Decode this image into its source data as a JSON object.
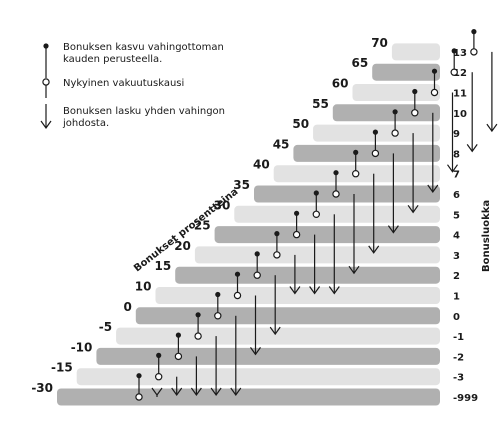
{
  "legend": {
    "growth_line1": "Bonuksen kasvu vahingottoman",
    "growth_line2": "kauden perusteella.",
    "current": "Nykyinen vakuutuskausi",
    "decrease_line1": "Bonuksen lasku yhden vahingon",
    "decrease_line2": "johdosta."
  },
  "axis_titles": {
    "percent": "Bonukset prosentteina",
    "class": "Bonusluokka"
  },
  "steps": [
    {
      "class": "-999",
      "percent": "-30"
    },
    {
      "class": "-3",
      "percent": "-15"
    },
    {
      "class": "-2",
      "percent": "-10"
    },
    {
      "class": "-1",
      "percent": "-5"
    },
    {
      "class": "0",
      "percent": "0"
    },
    {
      "class": "1",
      "percent": "10"
    },
    {
      "class": "2",
      "percent": "15"
    },
    {
      "class": "3",
      "percent": "20"
    },
    {
      "class": "4",
      "percent": "25"
    },
    {
      "class": "5",
      "percent": "30"
    },
    {
      "class": "6",
      "percent": "35"
    },
    {
      "class": "7",
      "percent": "40"
    },
    {
      "class": "8",
      "percent": "45"
    },
    {
      "class": "9",
      "percent": "50"
    },
    {
      "class": "10",
      "percent": "55"
    },
    {
      "class": "11",
      "percent": "60"
    },
    {
      "class": "12",
      "percent": "65"
    },
    {
      "class": "13",
      "percent": "70"
    }
  ],
  "transitions": [
    {
      "from_class": "-999",
      "to_class": "-3",
      "fall_to_class": "-999"
    },
    {
      "from_class": "-3",
      "to_class": "-2",
      "fall_to_class": "-999"
    },
    {
      "from_class": "-2",
      "to_class": "-1",
      "fall_to_class": "-999"
    },
    {
      "from_class": "-1",
      "to_class": "0",
      "fall_to_class": "-999"
    },
    {
      "from_class": "0",
      "to_class": "1",
      "fall_to_class": "-999"
    },
    {
      "from_class": "1",
      "to_class": "2",
      "fall_to_class": "-2"
    },
    {
      "from_class": "2",
      "to_class": "3",
      "fall_to_class": "-1"
    },
    {
      "from_class": "3",
      "to_class": "4",
      "fall_to_class": "1"
    },
    {
      "from_class": "4",
      "to_class": "5",
      "fall_to_class": "1"
    },
    {
      "from_class": "5",
      "to_class": "6",
      "fall_to_class": "1"
    },
    {
      "from_class": "6",
      "to_class": "7",
      "fall_to_class": "2"
    },
    {
      "from_class": "7",
      "to_class": "8",
      "fall_to_class": "3"
    },
    {
      "from_class": "8",
      "to_class": "9",
      "fall_to_class": "4"
    },
    {
      "from_class": "9",
      "to_class": "10",
      "fall_to_class": "5"
    },
    {
      "from_class": "10",
      "to_class": "11",
      "fall_to_class": "6"
    },
    {
      "from_class": "11",
      "to_class": "12",
      "fall_to_class": "7"
    },
    {
      "from_class": "12",
      "to_class": "13",
      "fall_to_class": "8"
    },
    {
      "from_class": "13",
      "to_class": "13",
      "fall_to_class": "9"
    }
  ],
  "colors": {
    "bar_light": "#e2e2e2",
    "bar_dark": "#b0b0b0",
    "line": "#1a1a1a"
  }
}
